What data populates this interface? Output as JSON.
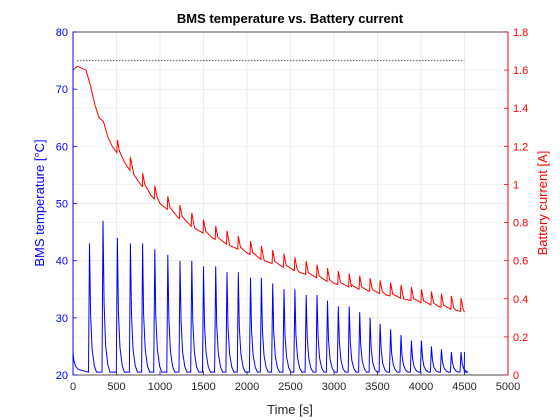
{
  "chart_data": {
    "type": "line",
    "title": "BMS temperature vs. Battery current",
    "xlabel": "Time [s]",
    "ylabel_left": "BMS temperature [°C]",
    "ylabel_right": "Battery current [A]",
    "xlim": [
      0,
      5000
    ],
    "ylim_left": [
      20,
      80
    ],
    "ylim_right": [
      0,
      1.8
    ],
    "xticks": [
      "0",
      "500",
      "1000",
      "1500",
      "2000",
      "2500",
      "3000",
      "3500",
      "4000",
      "4500",
      "5000"
    ],
    "yticks_left": [
      "20",
      "30",
      "40",
      "50",
      "60",
      "70",
      "80"
    ],
    "yticks_right": [
      "0",
      "0.2",
      "0.4",
      "0.6",
      "0.8",
      "1",
      "1.2",
      "1.4",
      "1.6",
      "1.8"
    ],
    "grid": true,
    "colors": {
      "left_axis": "#0000ff",
      "right_axis": "#ff0000",
      "reference": "#000000"
    },
    "reference_line": {
      "y_left": 75,
      "x_range": [
        50,
        4500
      ],
      "style": "dotted"
    },
    "series": [
      {
        "axis": "left",
        "color": "#0000ff",
        "baseline": 20.5,
        "start": {
          "x": [
            0,
            10,
            30,
            60,
            100
          ],
          "y": [
            24,
            22.5,
            21.5,
            21,
            20.8
          ]
        },
        "spikes": [
          {
            "x": 190,
            "peak": 43
          },
          {
            "x": 345,
            "peak": 47
          },
          {
            "x": 510,
            "peak": 44
          },
          {
            "x": 660,
            "peak": 43
          },
          {
            "x": 800,
            "peak": 43
          },
          {
            "x": 940,
            "peak": 42
          },
          {
            "x": 1090,
            "peak": 41
          },
          {
            "x": 1230,
            "peak": 40
          },
          {
            "x": 1365,
            "peak": 40
          },
          {
            "x": 1500,
            "peak": 39
          },
          {
            "x": 1640,
            "peak": 39
          },
          {
            "x": 1770,
            "peak": 38
          },
          {
            "x": 1900,
            "peak": 38
          },
          {
            "x": 2040,
            "peak": 37
          },
          {
            "x": 2165,
            "peak": 37
          },
          {
            "x": 2295,
            "peak": 36
          },
          {
            "x": 2425,
            "peak": 35
          },
          {
            "x": 2550,
            "peak": 35
          },
          {
            "x": 2680,
            "peak": 34
          },
          {
            "x": 2805,
            "peak": 34
          },
          {
            "x": 2925,
            "peak": 33
          },
          {
            "x": 3050,
            "peak": 32
          },
          {
            "x": 3175,
            "peak": 32
          },
          {
            "x": 3295,
            "peak": 31
          },
          {
            "x": 3415,
            "peak": 30
          },
          {
            "x": 3530,
            "peak": 29
          },
          {
            "x": 3650,
            "peak": 28
          },
          {
            "x": 3770,
            "peak": 27
          },
          {
            "x": 3890,
            "peak": 26
          },
          {
            "x": 4005,
            "peak": 26
          },
          {
            "x": 4120,
            "peak": 25
          },
          {
            "x": 4235,
            "peak": 24.5
          },
          {
            "x": 4350,
            "peak": 24
          },
          {
            "x": 4460,
            "peak": 24
          }
        ],
        "end": {
          "x": 4500,
          "y": 24
        }
      },
      {
        "axis": "right",
        "color": "#ff0000",
        "x": [
          0,
          50,
          100,
          150,
          200,
          250,
          300,
          350,
          400,
          450,
          500,
          600,
          700,
          800,
          900,
          1000,
          1200,
          1400,
          1600,
          1800,
          2000,
          2200,
          2400,
          2600,
          2800,
          3000,
          3200,
          3400,
          3600,
          3800,
          4000,
          4200,
          4400,
          4500
        ],
        "y": [
          1.6,
          1.62,
          1.61,
          1.6,
          1.52,
          1.42,
          1.35,
          1.33,
          1.25,
          1.2,
          1.17,
          1.11,
          1.05,
          0.99,
          0.94,
          0.9,
          0.83,
          0.77,
          0.72,
          0.68,
          0.64,
          0.6,
          0.57,
          0.54,
          0.51,
          0.48,
          0.46,
          0.44,
          0.42,
          0.4,
          0.38,
          0.36,
          0.34,
          0.33
        ]
      }
    ]
  }
}
